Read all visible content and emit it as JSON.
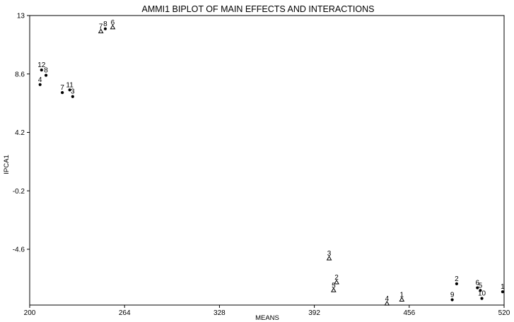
{
  "chart_data": {
    "type": "scatter",
    "title": "AMMI1 BIPLOT OF MAIN EFFECTS AND INTERACTIONS",
    "xlabel": "MEANS",
    "ylabel": "IPCA1",
    "xlim": [
      200,
      520
    ],
    "ylim": [
      -8.8,
      13
    ],
    "x_ticks": [
      200,
      264,
      328,
      392,
      456,
      520
    ],
    "x_tick_labels": [
      "200",
      "264",
      "328",
      "392",
      "456",
      "520"
    ],
    "y_ticks": [
      13,
      8.6,
      4.2,
      -0.2,
      -4.6
    ],
    "y_tick_labels": [
      "13",
      "8.6",
      "4.2",
      "-0.2",
      "-4.6"
    ],
    "grid": false,
    "series": [
      {
        "marker": "triangle",
        "points": [
          {
            "label": "7",
            "x": 248,
            "y": 11.8
          },
          {
            "label": "6",
            "x": 256,
            "y": 12.1
          },
          {
            "label": "3",
            "x": 402,
            "y": -5.3
          },
          {
            "label": "2",
            "x": 407,
            "y": -7.1
          },
          {
            "label": "5",
            "x": 405,
            "y": -7.7
          },
          {
            "label": "4",
            "x": 441,
            "y": -8.7
          },
          {
            "label": "1",
            "x": 451,
            "y": -8.4
          }
        ]
      },
      {
        "marker": "dot",
        "points": [
          {
            "label": "12",
            "x": 208,
            "y": 8.9
          },
          {
            "label": "8",
            "x": 211,
            "y": 8.5
          },
          {
            "label": "4",
            "x": 207,
            "y": 7.8
          },
          {
            "label": "7",
            "x": 222,
            "y": 7.2
          },
          {
            "label": "11",
            "x": 227,
            "y": 7.4
          },
          {
            "label": "3",
            "x": 229,
            "y": 6.9
          },
          {
            "label": "8",
            "x": 251,
            "y": 12.0
          },
          {
            "label": "2",
            "x": 488,
            "y": -7.2
          },
          {
            "label": "9",
            "x": 485,
            "y": -8.4
          },
          {
            "label": "6",
            "x": 502,
            "y": -7.5
          },
          {
            "label": "5",
            "x": 504,
            "y": -7.7
          },
          {
            "label": "10",
            "x": 505,
            "y": -8.3
          },
          {
            "label": "1",
            "x": 519,
            "y": -7.8
          }
        ]
      }
    ]
  }
}
